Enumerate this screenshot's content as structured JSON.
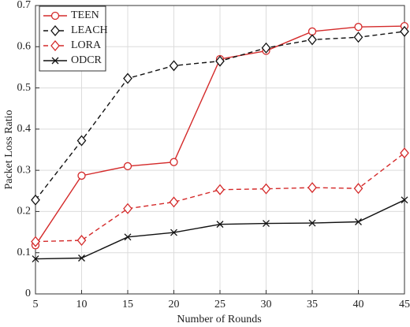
{
  "chart_data": {
    "type": "line",
    "x_label": "Number of Rounds",
    "y_label": "Packet Loss Ratio",
    "x": [
      5,
      10,
      15,
      20,
      25,
      30,
      35,
      40,
      45
    ],
    "series": [
      {
        "name": "TEEN",
        "color": "#d42a2a",
        "line_style": "solid",
        "marker": "circle",
        "values": [
          0.118,
          0.287,
          0.31,
          0.32,
          0.57,
          0.59,
          0.637,
          0.648,
          0.65
        ]
      },
      {
        "name": "LEACH",
        "color": "#111111",
        "line_style": "dashed",
        "marker": "diamond",
        "values": [
          0.228,
          0.372,
          0.523,
          0.554,
          0.565,
          0.597,
          0.617,
          0.623,
          0.637
        ]
      },
      {
        "name": "LORA",
        "color": "#d42a2a",
        "line_style": "dashed",
        "marker": "diamond",
        "values": [
          0.127,
          0.13,
          0.207,
          0.223,
          0.253,
          0.255,
          0.258,
          0.256,
          0.342
        ]
      },
      {
        "name": "ODCR",
        "color": "#111111",
        "line_style": "solid",
        "marker": "x",
        "values": [
          0.085,
          0.087,
          0.138,
          0.149,
          0.169,
          0.171,
          0.172,
          0.175,
          0.228
        ]
      }
    ],
    "xlim": [
      5,
      45
    ],
    "xticks": [
      5,
      10,
      15,
      20,
      25,
      30,
      35,
      40,
      45
    ],
    "ylim": [
      0,
      0.7
    ],
    "yticks": [
      0,
      0.1,
      0.2,
      0.3,
      0.4,
      0.5,
      0.6,
      0.7
    ],
    "grid": true,
    "legend": "upper-left"
  }
}
